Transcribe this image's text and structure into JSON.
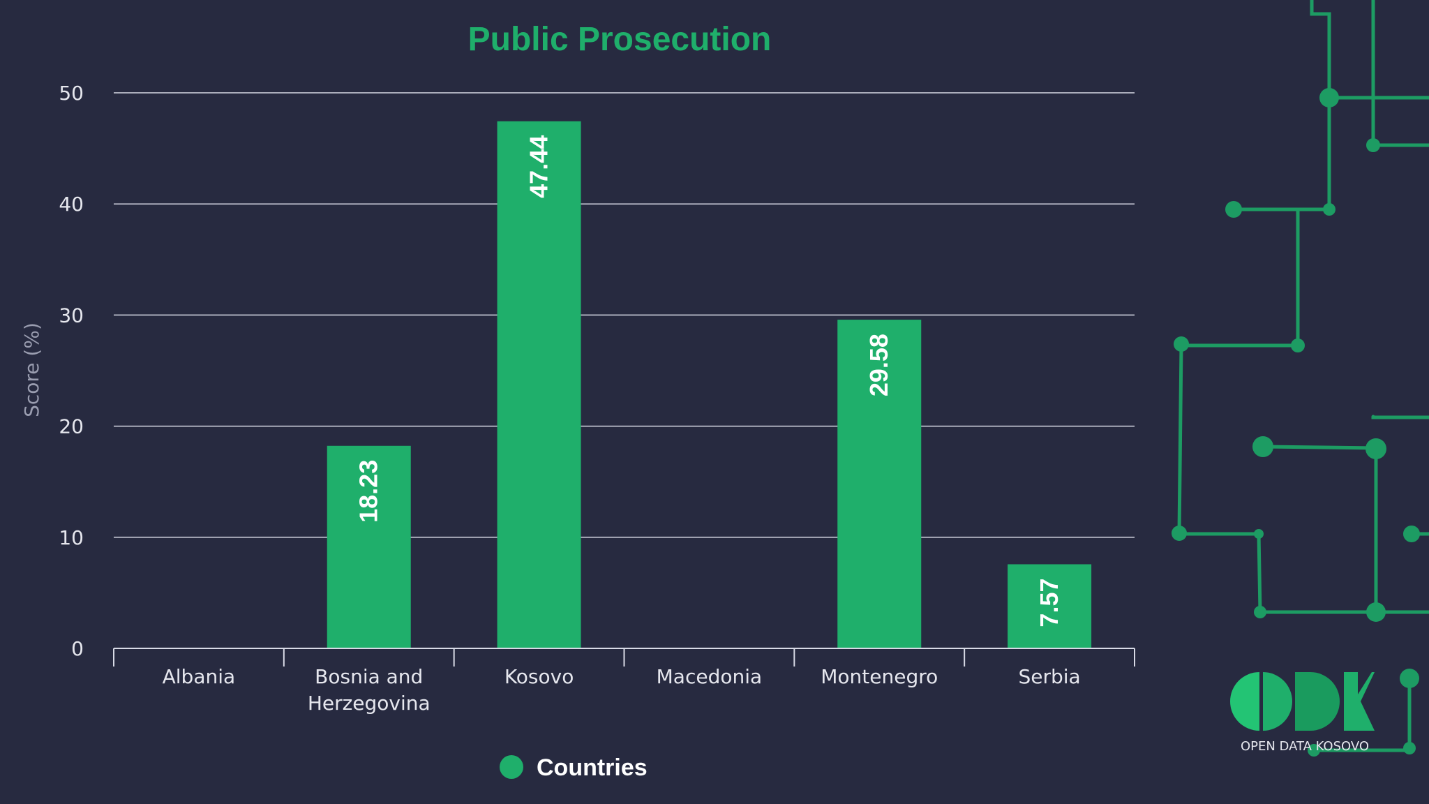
{
  "colors": {
    "background": "#272a40",
    "accent": "#1faf6b",
    "bar": "#1faf6b",
    "grid": "#d8dae6",
    "axis_text": "#e6e7ee",
    "ylabel_text": "#9a9db0",
    "circuit": "#1d9c63"
  },
  "chart_data": {
    "type": "bar",
    "title": "Public Prosecution",
    "xlabel": "",
    "ylabel": "Score (%)",
    "ylim": [
      0,
      50
    ],
    "yticks": [
      0,
      10,
      20,
      30,
      40,
      50
    ],
    "categories": [
      "Albania",
      "Bosnia and Herzegovina",
      "Kosovo",
      "Macedonia",
      "Montenegro",
      "Serbia"
    ],
    "category_lines": [
      [
        "Albania"
      ],
      [
        "Bosnia and",
        "Herzegovina"
      ],
      [
        "Kosovo"
      ],
      [
        "Macedonia"
      ],
      [
        "Montenegro"
      ],
      [
        "Serbia"
      ]
    ],
    "series": [
      {
        "name": "Countries",
        "values": [
          null,
          18.23,
          47.44,
          null,
          29.58,
          7.57
        ],
        "labels": [
          "",
          "18.23",
          "47.44",
          "",
          "29.58",
          "7.57"
        ]
      }
    ],
    "legend": {
      "position": "bottom-center",
      "entries": [
        "Countries"
      ]
    },
    "grid": true
  },
  "brand": {
    "icon": "odk-logo-icon",
    "text": "OPEN DATA KOSOVO"
  }
}
